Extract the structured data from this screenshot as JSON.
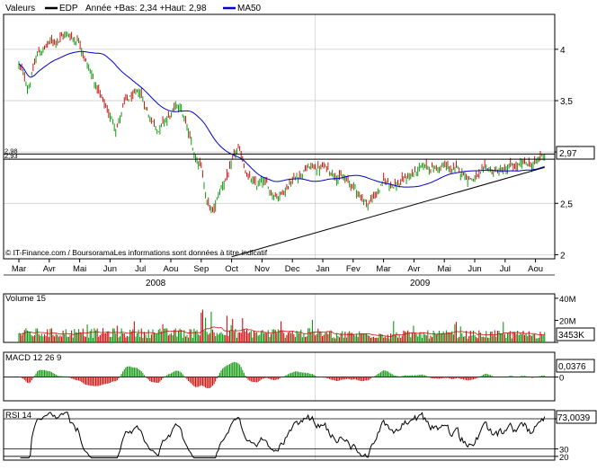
{
  "header": {
    "label": "Valeurs",
    "symbol": "EDP",
    "range_text": "Année +Bas: 2,34 +Haut: 2,98",
    "ma_label": "MA50"
  },
  "copyright": "© IT-Finance.com / BoursoramaLes informations sont données à titre indicatif",
  "colors": {
    "up": "#119911",
    "down": "#cc1111",
    "ma": "#0000cc",
    "line": "#000000",
    "grid": "#c8c8c8",
    "frame": "#000000",
    "text": "#000000"
  },
  "chart_data": [
    {
      "type": "candlestick",
      "name": "price",
      "y_ticks": [
        2,
        2.5,
        3,
        3.5,
        4
      ],
      "y_tick_labels": [
        "2",
        "2,5",
        "3",
        "3,5",
        "4"
      ],
      "ylim": [
        1.96,
        4.34
      ],
      "x_months": [
        "Mar",
        "Avr",
        "Mai",
        "Jun",
        "Jul",
        "Aou",
        "Sep",
        "Oct",
        "Nov",
        "Dec",
        "Jan",
        "Fev",
        "Mar",
        "Avr",
        "Mai",
        "Jun",
        "Jul",
        "Aou"
      ],
      "years": [
        "2008",
        "2009"
      ],
      "keypoints": [
        [
          0,
          3.85
        ],
        [
          0.3,
          3.62
        ],
        [
          0.6,
          3.95
        ],
        [
          1.0,
          4.05
        ],
        [
          1.5,
          4.15
        ],
        [
          2.0,
          4.1
        ],
        [
          2.4,
          3.75
        ],
        [
          2.8,
          3.45
        ],
        [
          3.2,
          3.25
        ],
        [
          3.5,
          3.48
        ],
        [
          4.0,
          3.55
        ],
        [
          4.3,
          3.35
        ],
        [
          4.6,
          3.25
        ],
        [
          5.0,
          3.35
        ],
        [
          5.3,
          3.45
        ],
        [
          5.5,
          3.25
        ],
        [
          5.8,
          2.95
        ],
        [
          6.0,
          2.9
        ],
        [
          6.2,
          2.5
        ],
        [
          6.4,
          2.4
        ],
        [
          6.6,
          2.6
        ],
        [
          6.9,
          2.8
        ],
        [
          7.2,
          3.0
        ],
        [
          7.5,
          2.8
        ],
        [
          7.8,
          2.65
        ],
        [
          8.0,
          2.7
        ],
        [
          8.3,
          2.6
        ],
        [
          8.6,
          2.6
        ],
        [
          9.0,
          2.75
        ],
        [
          9.5,
          2.85
        ],
        [
          10.0,
          2.85
        ],
        [
          10.5,
          2.8
        ],
        [
          11.0,
          2.65
        ],
        [
          11.5,
          2.5
        ],
        [
          12.0,
          2.7
        ],
        [
          12.5,
          2.7
        ],
        [
          13.0,
          2.8
        ],
        [
          13.5,
          2.85
        ],
        [
          14.0,
          2.85
        ],
        [
          14.5,
          2.8
        ],
        [
          15.0,
          2.75
        ],
        [
          15.5,
          2.8
        ],
        [
          16.0,
          2.82
        ],
        [
          16.5,
          2.85
        ],
        [
          17.0,
          2.88
        ],
        [
          17.3,
          2.98
        ]
      ],
      "last_value": "2,97",
      "horizontal_levels": [
        2.98,
        2.93
      ],
      "horizontal_level_labels": [
        "2,98",
        "2,93"
      ],
      "trendline": [
        [
          7.0,
          1.98
        ],
        [
          17.3,
          2.85
        ]
      ],
      "series": [
        {
          "name": "EDP"
        },
        {
          "name": "MA50"
        }
      ]
    },
    {
      "type": "bar",
      "name": "volume",
      "title": "Volume 15",
      "y_ticks": [
        0,
        20,
        40
      ],
      "y_tick_labels": [
        "",
        "20M",
        "40M"
      ],
      "ylim": [
        0,
        44
      ],
      "last_value": "3453K"
    },
    {
      "type": "bar",
      "name": "macd",
      "title": "MACD 12 26 9",
      "y_ticks": [
        0
      ],
      "y_tick_labels": [
        "0"
      ],
      "ylim": [
        -0.23,
        0.24
      ],
      "last_value": "0,0376"
    },
    {
      "type": "line",
      "name": "rsi",
      "title": "RSI 14",
      "y_ticks": [
        20,
        30,
        70
      ],
      "y_tick_labels": [
        "20",
        "30",
        "70"
      ],
      "ylim": [
        15,
        82
      ],
      "last_value": "73,0039"
    }
  ]
}
